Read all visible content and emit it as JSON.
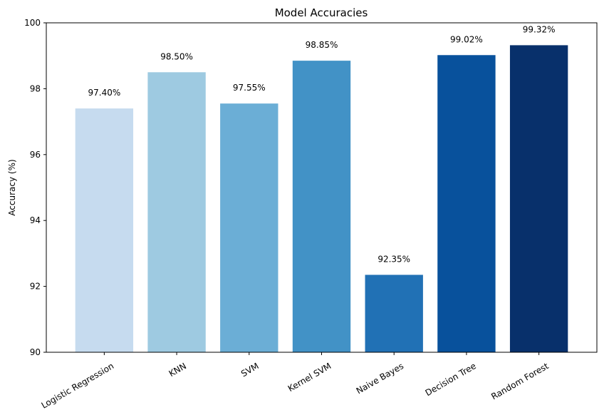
{
  "chart_data": {
    "type": "bar",
    "title": "Model Accuracies",
    "xlabel": "",
    "ylabel": "Accuracy (%)",
    "ylim": [
      90,
      100
    ],
    "yticks": [
      90,
      92,
      94,
      96,
      98,
      100
    ],
    "categories": [
      "Logistic Regression",
      "KNN",
      "SVM",
      "Kernel SVM",
      "Naive Bayes",
      "Decision Tree",
      "Random Forest"
    ],
    "values": [
      97.4,
      98.5,
      97.55,
      98.85,
      92.35,
      99.02,
      99.32
    ],
    "value_labels": [
      "97.40%",
      "98.50%",
      "97.55%",
      "98.85%",
      "92.35%",
      "99.02%",
      "99.32%"
    ],
    "colors": [
      "#c6dbef",
      "#9ecae1",
      "#6baed6",
      "#4292c6",
      "#2171b5",
      "#08519c",
      "#08306b"
    ],
    "grid": false,
    "legend": "none"
  }
}
